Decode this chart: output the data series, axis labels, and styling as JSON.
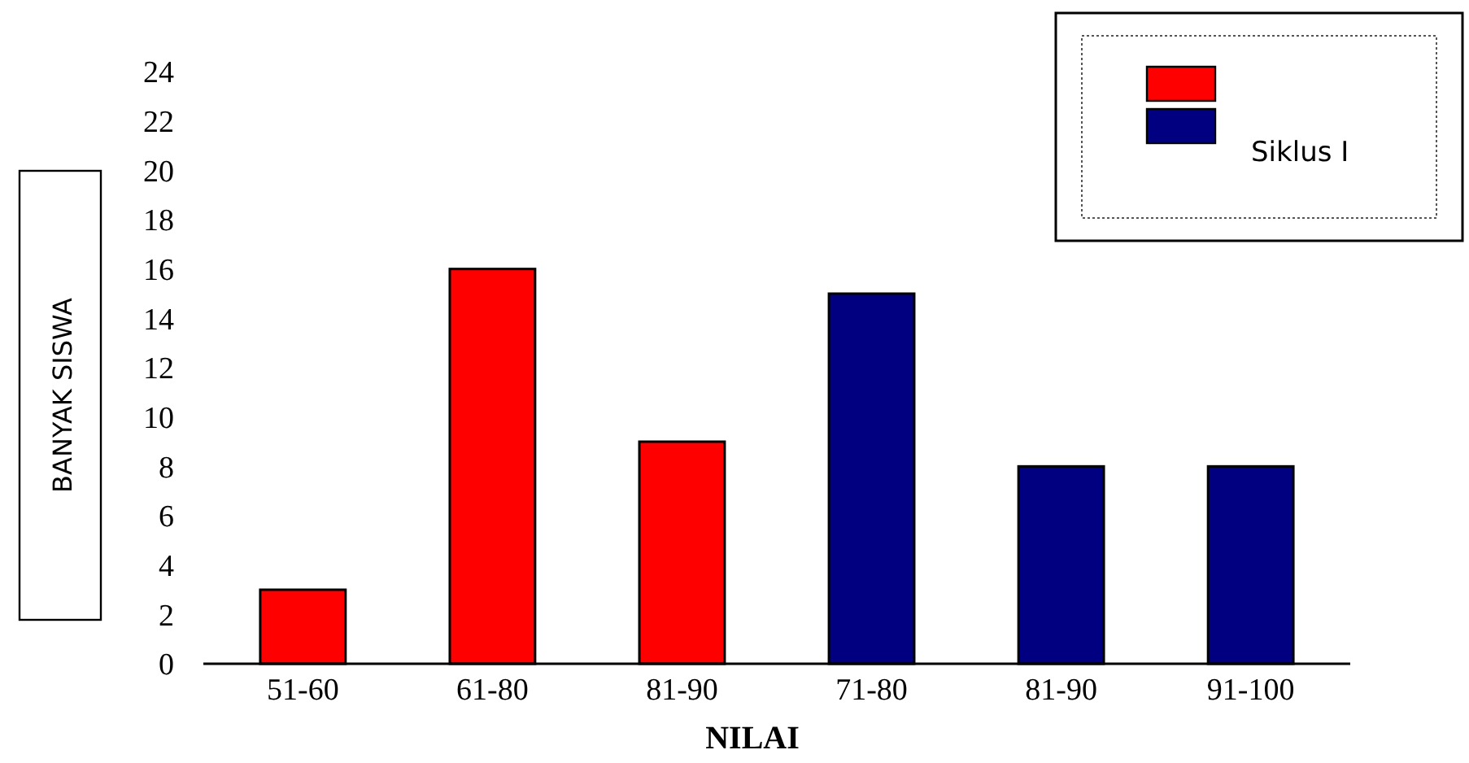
{
  "chart_data": {
    "type": "bar",
    "xlabel": "NILAI",
    "ylabel": "BANYAK SISWA",
    "categories": [
      "51-60",
      "61-80",
      "81-90",
      "71-80",
      "81-90",
      "91-100"
    ],
    "series": [
      {
        "color": "#ff0000",
        "values": [
          3,
          16,
          9,
          null,
          null,
          null
        ]
      },
      {
        "name": "Siklus I",
        "color": "#000080",
        "values": [
          null,
          null,
          null,
          15,
          8,
          8
        ]
      }
    ],
    "ylim": [
      0,
      24
    ],
    "yticks": [
      0,
      2,
      4,
      6,
      8,
      10,
      12,
      14,
      16,
      18,
      20,
      22,
      24
    ],
    "legend": "top right"
  }
}
